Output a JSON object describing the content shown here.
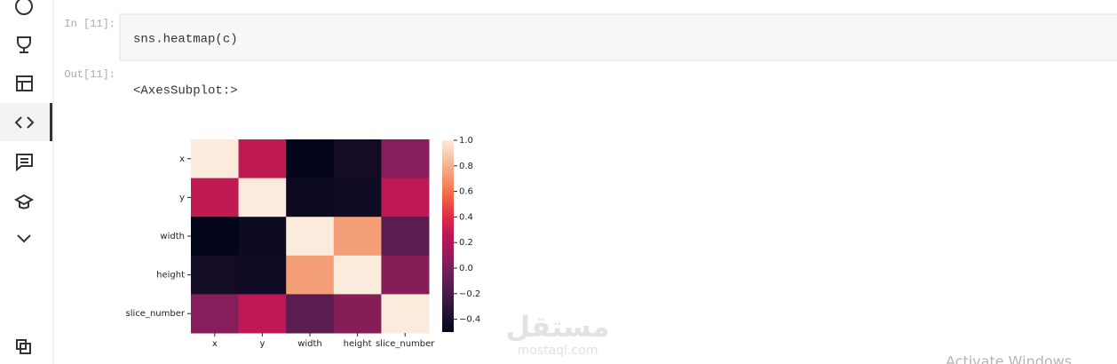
{
  "cells": [
    {
      "prompt": "In [11]:",
      "code": "sns.heatmap(c)"
    },
    {
      "prompt": "Out[11]:",
      "output": "<AxesSubplot:>"
    }
  ],
  "chart_data": {
    "type": "heatmap",
    "colormap": "rocket",
    "x_labels": [
      "x",
      "y",
      "width",
      "height",
      "slice_number"
    ],
    "y_labels": [
      "x",
      "y",
      "width",
      "height",
      "slice_number"
    ],
    "values": [
      [
        1,
        0.28,
        -0.5,
        -0.42,
        0.06
      ],
      [
        0.28,
        1,
        -0.45,
        -0.43,
        0.27
      ],
      [
        -0.5,
        -0.45,
        1,
        0.74,
        -0.12
      ],
      [
        -0.42,
        -0.43,
        0.74,
        1,
        0.05
      ],
      [
        0.06,
        0.27,
        -0.12,
        0.05,
        1
      ]
    ],
    "clim": [
      -0.5,
      1
    ],
    "colorbar_ticks": [
      {
        "value": 1,
        "label": "1.0"
      },
      0.8,
      0.6,
      0.4,
      0.2,
      {
        "value": 0,
        "label": "0.0"
      },
      {
        "value": -0.2,
        "label": "−0.2"
      },
      {
        "value": -0.4,
        "label": "−0.4"
      }
    ]
  },
  "watermark": {
    "logo": "مستقل",
    "url": "mostaql.com"
  },
  "os_notice": "Activate Windows"
}
